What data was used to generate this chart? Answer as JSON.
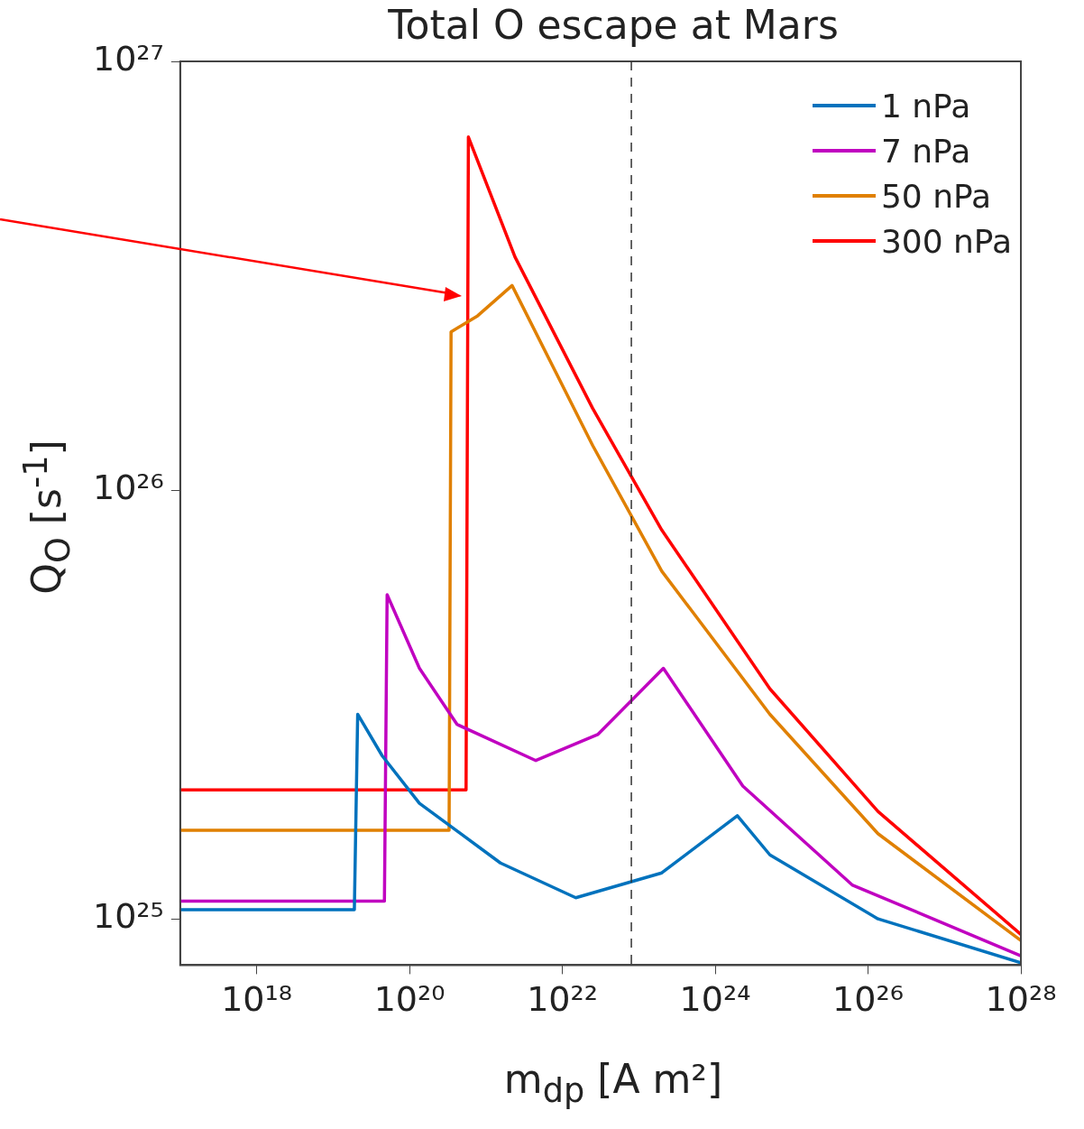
{
  "chart_data": {
    "type": "line",
    "title": "Total O escape at Mars",
    "xlabel": "m$_{dp}$ [A m²]",
    "ylabel": "Q$_{O}$ [s$^{-1}$]",
    "log": "xy",
    "xlim": [
      1e+17,
      1e+28
    ],
    "ylim": [
      7.8e+24,
      1e+27
    ],
    "xticks": [
      {
        "value": 1e+18,
        "label": "10¹⁸"
      },
      {
        "value": 1e+20,
        "label": "10²⁰"
      },
      {
        "value": 1e+22,
        "label": "10²²"
      },
      {
        "value": 1e+24,
        "label": "10²⁴"
      },
      {
        "value": 1e+26,
        "label": "10²⁶"
      },
      {
        "value": 1e+28,
        "label": "10²⁸"
      }
    ],
    "yticks": [
      {
        "value": 1e+25,
        "label": "10²⁵"
      },
      {
        "value": 1e+26,
        "label": "10²⁶"
      },
      {
        "value": 1e+27,
        "label": "10²⁷"
      }
    ],
    "grid": false,
    "legend": "top right",
    "marker": "none",
    "line_style": "solid",
    "ref_lines": [
      {
        "axis": "x",
        "value": 8e+22,
        "color": "#333333",
        "line_style": "dashed"
      }
    ],
    "series": [
      {
        "name": "1 nPa",
        "color": "#0072bd",
        "x": [
          1e+17,
          1.9e+19,
          2.1e+19,
          4.4e+19,
          1.35e+20,
          1.55e+21,
          1.5e+22,
          2e+23,
          1.95e+24,
          5.2e+24,
          1.35e+26,
          1e+28
        ],
        "values": [
          1.05e+25,
          1.05e+25,
          3e+25,
          2.4e+25,
          1.86e+25,
          1.35e+25,
          1.12e+25,
          1.28e+25,
          1.74e+25,
          1.41e+25,
          1e+25,
          7.9e+24
        ]
      },
      {
        "name": "7 nPa",
        "color": "#c000c0",
        "x": [
          1e+17,
          4.7e+19,
          5.1e+19,
          1.35e+20,
          4.2e+20,
          4.5e+21,
          2.9e+22,
          2.1e+23,
          2.3e+24,
          6.2e+25,
          1e+28
        ],
        "values": [
          1.1e+25,
          1.1e+25,
          5.7e+25,
          3.84e+25,
          2.84e+25,
          2.34e+25,
          2.69e+25,
          3.84e+25,
          2.04e+25,
          1.2e+25,
          8.2e+24
        ]
      },
      {
        "name": "50 nPa",
        "color": "#e08000",
        "x": [
          1e+17,
          3.3e+20,
          3.5e+20,
          7.8e+20,
          2.2e+21,
          2.5e+22,
          2e+23,
          5.2e+24,
          1.35e+26,
          1e+28
        ],
        "values": [
          1.61e+25,
          1.61e+25,
          2.34e+26,
          2.55e+26,
          3e+26,
          1.27e+26,
          6.47e+25,
          3e+25,
          1.58e+25,
          8.9e+24
        ]
      },
      {
        "name": "300 nPa",
        "color": "#ff0000",
        "x": [
          1e+17,
          5.5e+20,
          5.9e+20,
          2.4e+21,
          2.5e+22,
          2e+23,
          5.2e+24,
          1.35e+26,
          1e+28
        ],
        "values": [
          2e+25,
          2e+25,
          6.66e+26,
          3.5e+26,
          1.55e+26,
          8.07e+25,
          3.44e+25,
          1.78e+25,
          9.2e+24
        ]
      }
    ]
  }
}
